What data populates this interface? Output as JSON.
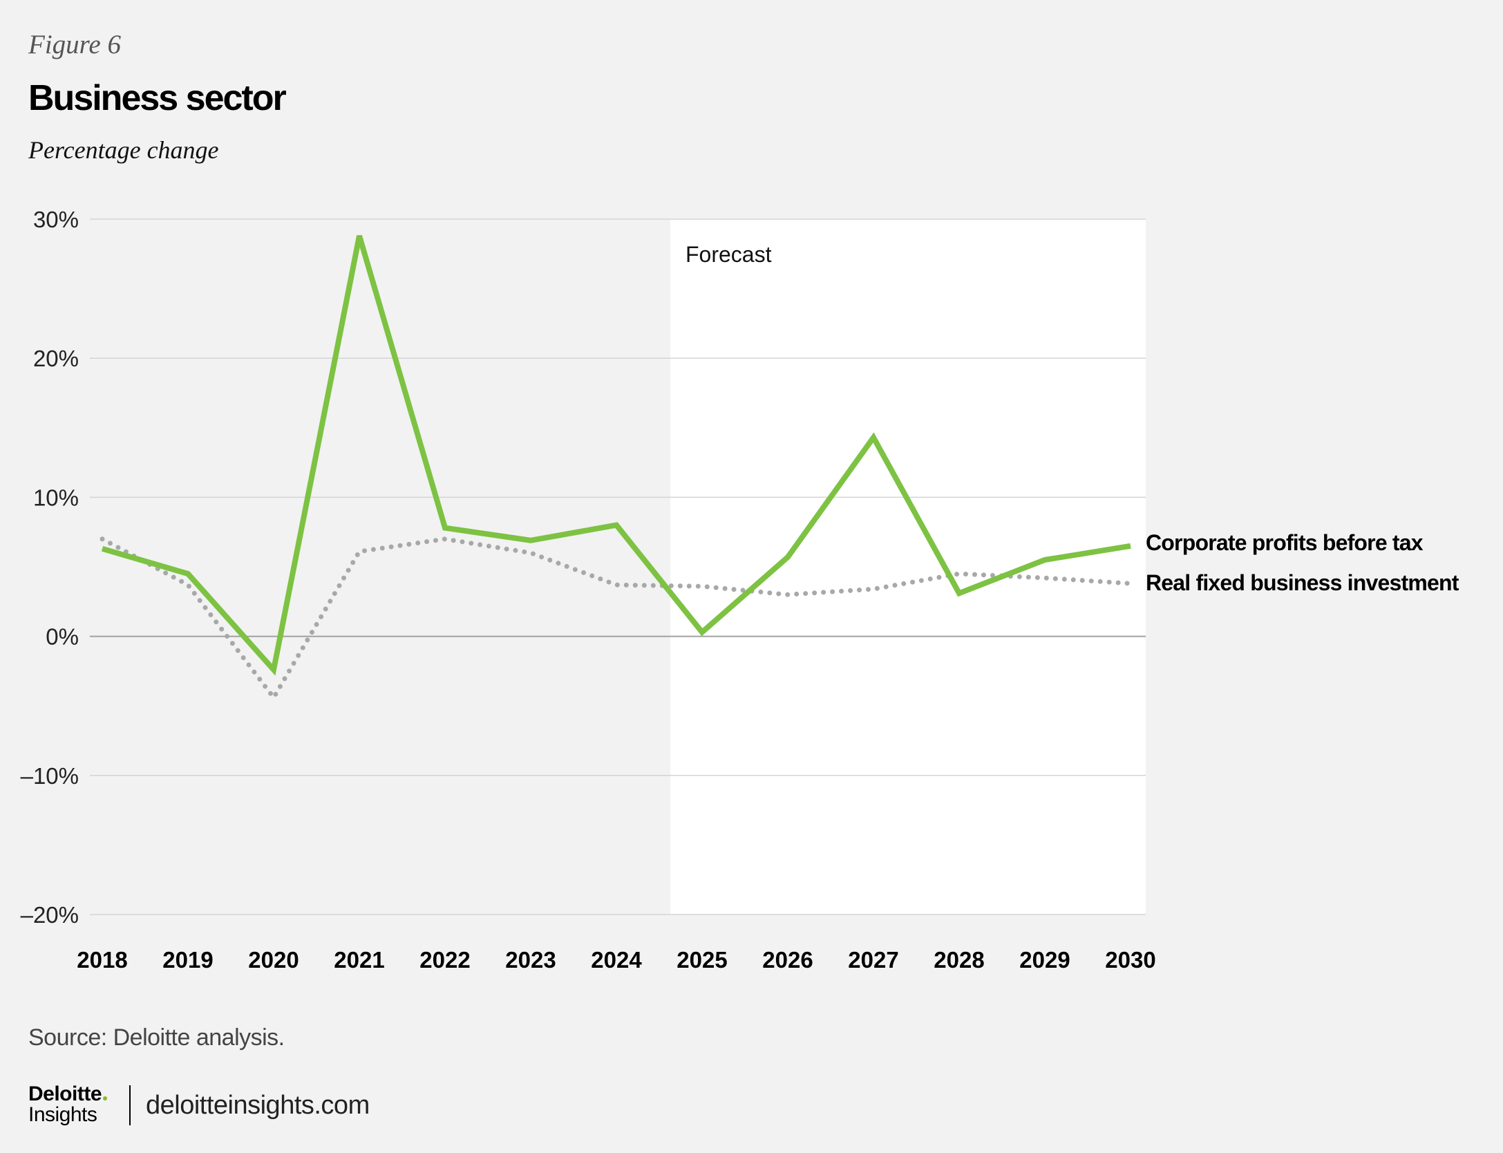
{
  "figure_label": "Figure 6",
  "source": "Source: Deloitte analysis.",
  "brand": {
    "name": "Deloitte",
    "sub": "Insights",
    "url": "deloitteinsights.com"
  },
  "colors": {
    "profits": "#7dc242",
    "investment": "#a7a9a8",
    "forecast_bg": "#ffffff",
    "grid": "#d4d4d4",
    "zero_line": "#a0a0a0"
  },
  "chart_data": {
    "type": "line",
    "title": "Business sector",
    "subtitle": "Percentage change",
    "xlabel": "",
    "ylabel": "",
    "categories": [
      "2018",
      "2019",
      "2020",
      "2021",
      "2022",
      "2023",
      "2024",
      "2025",
      "2026",
      "2027",
      "2028",
      "2029",
      "2030"
    ],
    "ylim": [
      -20,
      30
    ],
    "yticks": [
      30,
      20,
      10,
      0,
      -10,
      -20
    ],
    "ytick_labels": [
      "30%",
      "20%",
      "10%",
      "0%",
      "–10%",
      "–20%"
    ],
    "grid": true,
    "forecast_label": "Forecast",
    "forecast_start_after": "2024",
    "series": [
      {
        "name": "Corporate profits before tax",
        "style": "solid",
        "values": [
          6.3,
          4.5,
          -2.4,
          28.8,
          7.8,
          6.9,
          8.0,
          0.3,
          5.7,
          14.3,
          3.1,
          5.5,
          6.5
        ]
      },
      {
        "name": "Real fixed business investment",
        "style": "dotted",
        "values": [
          7.0,
          3.7,
          -4.4,
          6.1,
          7.0,
          6.0,
          3.7,
          3.6,
          3.0,
          3.4,
          4.5,
          4.2,
          3.8
        ]
      }
    ]
  }
}
